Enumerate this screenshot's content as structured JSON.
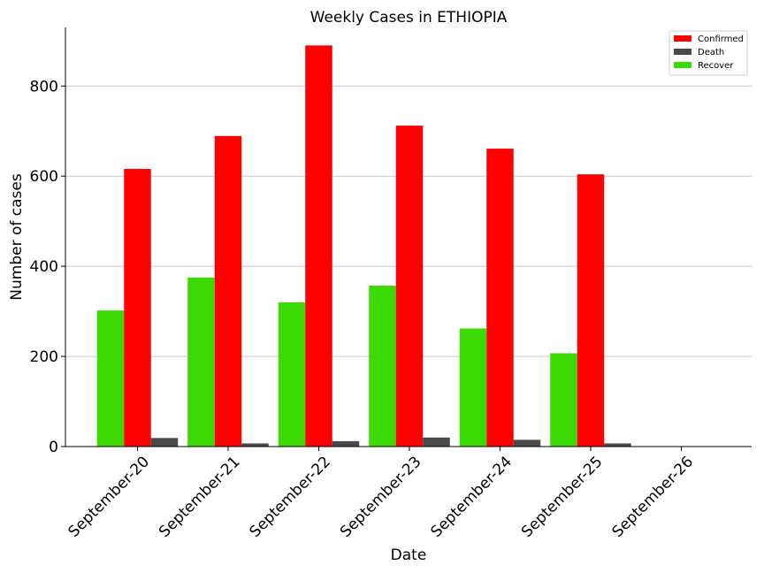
{
  "chart_data": {
    "type": "bar",
    "title": "Weekly Cases in ETHIOPIA",
    "xlabel": "Date",
    "ylabel": "Number of cases",
    "categories": [
      "September-20",
      "September-21",
      "September-22",
      "September-23",
      "September-24",
      "September-25",
      "September-26"
    ],
    "series": [
      {
        "name": "Recover",
        "color": "#3cd904",
        "values": [
          302,
          375,
          320,
          357,
          262,
          207,
          0
        ]
      },
      {
        "name": "Confirmed",
        "color": "#ff0000",
        "values": [
          616,
          689,
          890,
          712,
          661,
          604,
          0
        ]
      },
      {
        "name": "Death",
        "color": "#4a4a4a",
        "values": [
          19,
          7,
          12,
          20,
          15,
          7,
          0
        ]
      }
    ],
    "legend_order": [
      "Confirmed",
      "Death",
      "Recover"
    ],
    "ylim": [
      0,
      930
    ],
    "yticks": [
      0,
      200,
      400,
      600,
      800
    ],
    "grid": "horizontal",
    "legend_position": "top-right"
  }
}
